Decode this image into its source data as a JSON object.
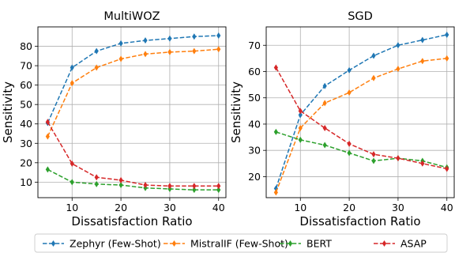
{
  "chart_data": [
    {
      "type": "line",
      "title": "MultiWOZ",
      "xlabel": "Dissatisfaction Ratio",
      "ylabel": "Sensitivity",
      "x": [
        5,
        10,
        15,
        20,
        25,
        30,
        35,
        40
      ],
      "xlim": [
        3,
        41.5
      ],
      "ylim": [
        2,
        90
      ],
      "xticks": [
        10,
        20,
        30,
        40
      ],
      "yticks": [
        10,
        20,
        30,
        40,
        50,
        60,
        70,
        80
      ],
      "grid": true,
      "series": [
        {
          "name": "Zephyr (Few-Shot)",
          "color": "#1f77b4",
          "values": [
            40.5,
            69,
            77.5,
            81.5,
            83,
            84,
            85,
            85.5
          ]
        },
        {
          "name": "MistralIF (Few-Shot)",
          "color": "#ff7f0e",
          "values": [
            33.5,
            61,
            69,
            73.5,
            76,
            77,
            77.5,
            78.5
          ]
        },
        {
          "name": "BERT",
          "color": "#2ca02c",
          "values": [
            16.5,
            10,
            9,
            8.5,
            7,
            6.5,
            6,
            6
          ]
        },
        {
          "name": "ASAP",
          "color": "#d62728",
          "values": [
            41,
            19.5,
            12.5,
            11,
            8.5,
            8,
            8,
            8
          ]
        }
      ]
    },
    {
      "type": "line",
      "title": "SGD",
      "xlabel": "Dissatisfaction Ratio",
      "ylabel": "Sensitivity",
      "x": [
        5,
        10,
        15,
        20,
        25,
        30,
        35,
        40
      ],
      "xlim": [
        3,
        41.5
      ],
      "ylim": [
        12,
        77
      ],
      "xticks": [
        10,
        20,
        30,
        40
      ],
      "yticks": [
        20,
        30,
        40,
        50,
        60,
        70
      ],
      "grid": true,
      "series": [
        {
          "name": "Zephyr (Few-Shot)",
          "color": "#1f77b4",
          "values": [
            15.5,
            43.5,
            54.5,
            60.5,
            66,
            70,
            72,
            74
          ]
        },
        {
          "name": "MistralIF (Few-Shot)",
          "color": "#ff7f0e",
          "values": [
            14,
            38.5,
            48,
            52,
            57.5,
            61,
            64,
            65
          ]
        },
        {
          "name": "BERT",
          "color": "#2ca02c",
          "values": [
            37,
            34,
            32,
            29,
            26,
            27,
            26,
            23.5
          ]
        },
        {
          "name": "ASAP",
          "color": "#d62728",
          "values": [
            61.5,
            45,
            38.5,
            32.5,
            28.5,
            27,
            25,
            23
          ]
        }
      ]
    }
  ],
  "legend": {
    "placement": "bottom-center",
    "entries": [
      "Zephyr (Few-Shot)",
      "MistralIF (Few-Shot)",
      "BERT",
      "ASAP"
    ]
  }
}
